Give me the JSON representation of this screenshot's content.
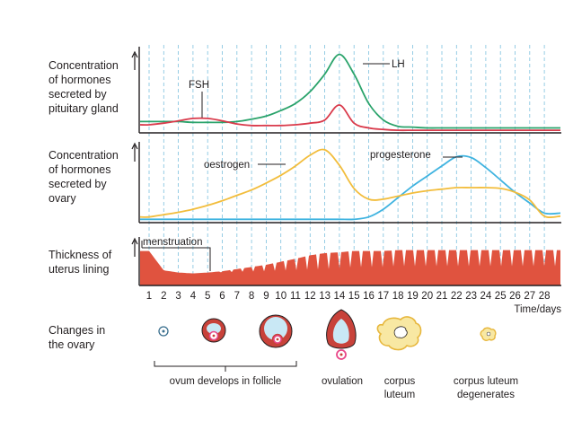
{
  "colors": {
    "fsh": "#d93a4b",
    "lh": "#2aa36b",
    "oestrogen": "#f2bd3c",
    "progesterone": "#3fb3e0",
    "lining": "#e0533f",
    "follicle_wall": "#c8423a",
    "follicle_fluid": "#c9e8f5",
    "ovum_ring": "#e9498a",
    "corpus": "#f8e8a3",
    "corpus_edge": "#e7b73d",
    "grid": "#7cc0de",
    "axis": "#231f20"
  },
  "panels": {
    "pituitary": {
      "label_lines": [
        "Concentration",
        "of hormones",
        "secreted by",
        "pituitary gland"
      ],
      "fsh_label": "FSH",
      "lh_label": "LH"
    },
    "ovary_hormones": {
      "label_lines": [
        "Concentration",
        "of hormones",
        "secreted by",
        "ovary"
      ],
      "oestrogen_label": "oestrogen",
      "progesterone_label": "progesterone"
    },
    "uterus": {
      "label_lines": [
        "Thickness of",
        "uterus lining"
      ],
      "menstruation_label": "menstruation"
    },
    "ovary_changes": {
      "label_lines": [
        "Changes in",
        "the ovary"
      ],
      "bracket_label": "ovum develops in follicle",
      "ovulation_label": "ovulation",
      "corpus_luteum_lines": [
        "corpus",
        "luteum"
      ],
      "degenerates_lines": [
        "corpus luteum",
        "degenerates"
      ]
    }
  },
  "x_axis": {
    "days": [
      "1",
      "2",
      "3",
      "4",
      "5",
      "6",
      "7",
      "8",
      "9",
      "10",
      "11",
      "12",
      "13",
      "14",
      "15",
      "16",
      "17",
      "18",
      "19",
      "20",
      "21",
      "22",
      "23",
      "24",
      "25",
      "26",
      "27",
      "28"
    ],
    "unit_label": "Time/days"
  },
  "chart_data": {
    "type": "line",
    "x": [
      1,
      2,
      3,
      4,
      5,
      6,
      7,
      8,
      9,
      10,
      11,
      12,
      13,
      14,
      15,
      16,
      17,
      18,
      19,
      20,
      21,
      22,
      23,
      24,
      25,
      26,
      27,
      28
    ],
    "xlabel": "Time/days",
    "panels": [
      {
        "ylabel": "Concentration of hormones secreted by pituitary gland",
        "ylim": [
          0,
          1
        ],
        "series": [
          {
            "name": "FSH",
            "values": [
              0.08,
              0.1,
              0.13,
              0.16,
              0.16,
              0.13,
              0.09,
              0.07,
              0.07,
              0.07,
              0.08,
              0.1,
              0.14,
              0.33,
              0.1,
              0.04,
              0.02,
              0.01,
              0.01,
              0.01,
              0.01,
              0.01,
              0.01,
              0.01,
              0.01,
              0.01,
              0.01,
              0.01
            ]
          },
          {
            "name": "LH",
            "values": [
              0.12,
              0.12,
              0.12,
              0.11,
              0.11,
              0.11,
              0.12,
              0.15,
              0.19,
              0.26,
              0.35,
              0.5,
              0.72,
              0.97,
              0.72,
              0.35,
              0.14,
              0.06,
              0.05,
              0.04,
              0.04,
              0.04,
              0.04,
              0.04,
              0.04,
              0.04,
              0.04,
              0.04
            ]
          }
        ]
      },
      {
        "ylabel": "Concentration of hormones secreted by ovary",
        "ylim": [
          0,
          1
        ],
        "series": [
          {
            "name": "oestrogen",
            "values": [
              0.05,
              0.08,
              0.11,
              0.15,
              0.2,
              0.26,
              0.33,
              0.4,
              0.49,
              0.59,
              0.71,
              0.85,
              0.92,
              0.72,
              0.42,
              0.28,
              0.28,
              0.32,
              0.36,
              0.39,
              0.41,
              0.43,
              0.43,
              0.43,
              0.42,
              0.37,
              0.27,
              0.06
            ]
          },
          {
            "name": "progesterone",
            "values": [
              0.02,
              0.02,
              0.02,
              0.02,
              0.02,
              0.02,
              0.02,
              0.02,
              0.02,
              0.02,
              0.02,
              0.02,
              0.02,
              0.02,
              0.02,
              0.05,
              0.15,
              0.3,
              0.45,
              0.58,
              0.71,
              0.83,
              0.82,
              0.69,
              0.53,
              0.37,
              0.23,
              0.1
            ]
          }
        ]
      },
      {
        "ylabel": "Thickness of uterus lining",
        "ylim": [
          0,
          1
        ],
        "series": [
          {
            "name": "",
            "values": [
              0.8,
              0.35,
              0.3,
              0.28,
              0.3,
              0.33,
              0.38,
              0.43,
              0.48,
              0.55,
              0.62,
              0.7,
              0.75,
              0.77,
              0.8,
              0.8,
              0.8,
              0.82,
              0.82,
              0.82,
              0.82,
              0.82,
              0.82,
              0.82,
              0.82,
              0.82,
              0.82,
              0.82
            ]
          }
        ]
      }
    ]
  }
}
